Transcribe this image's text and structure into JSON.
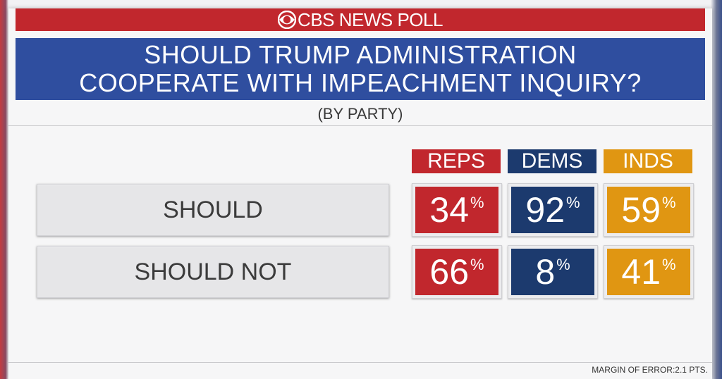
{
  "header": {
    "brand": "CBS NEWS POLL",
    "logo_icon": "cbs-eye-icon"
  },
  "chart_data": {
    "type": "table",
    "title_lines": [
      "SHOULD TRUMP ADMINISTRATION",
      "COOPERATE WITH IMPEACHMENT INQUIRY?"
    ],
    "subtitle": "(BY PARTY)",
    "columns": [
      {
        "label": "REPS",
        "color": "#c1272d"
      },
      {
        "label": "DEMS",
        "color": "#1c3a6e"
      },
      {
        "label": "INDS",
        "color": "#e09612"
      }
    ],
    "rows": [
      {
        "label": "SHOULD",
        "values": [
          34,
          92,
          59
        ]
      },
      {
        "label": "SHOULD NOT",
        "values": [
          66,
          8,
          41
        ]
      }
    ],
    "unit": "%"
  },
  "footer": {
    "margin_of_error": "MARGIN OF ERROR:2.1 PTS."
  }
}
